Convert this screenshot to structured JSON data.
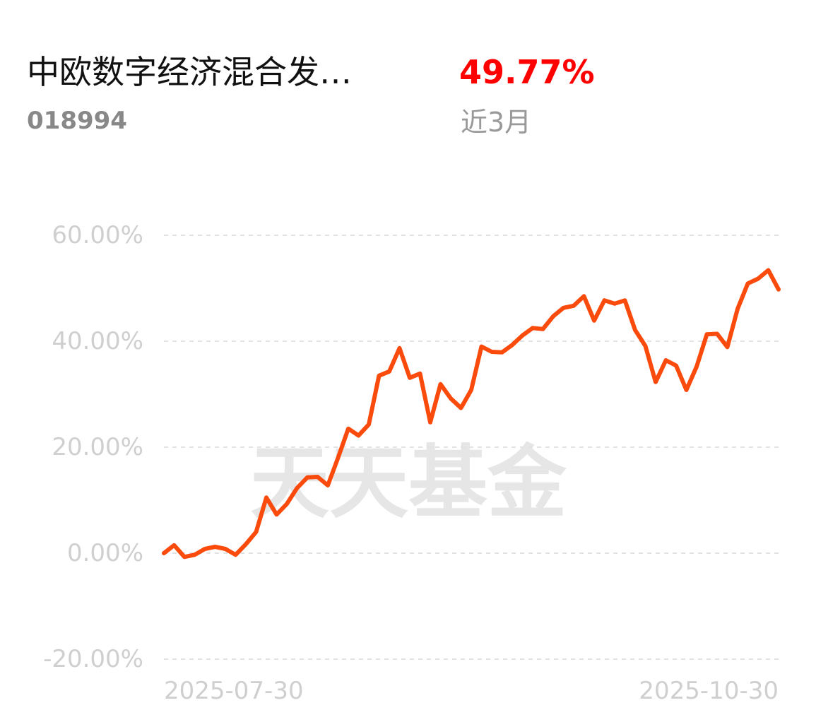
{
  "header": {
    "title": "中欧数字经济混合发…",
    "code": "018994",
    "return": "49.77%",
    "period": "近3月"
  },
  "watermark": "天天基金",
  "chart_data": {
    "type": "line",
    "categories": [
      "2025-07-30",
      null,
      null,
      null,
      null,
      null,
      null,
      null,
      null,
      null,
      null,
      null,
      null,
      null,
      null,
      null,
      null,
      null,
      null,
      null,
      null,
      null,
      null,
      null,
      null,
      null,
      null,
      null,
      null,
      null,
      null,
      null,
      null,
      null,
      null,
      null,
      null,
      null,
      null,
      null,
      null,
      null,
      null,
      null,
      null,
      null,
      null,
      null,
      null,
      null,
      null,
      null,
      null,
      null,
      null,
      null,
      null,
      null,
      null,
      null,
      "2025-10-30"
    ],
    "values": [
      0,
      1.5,
      -0.7,
      -0.3,
      0.8,
      1.2,
      0.8,
      -0.3,
      1.7,
      4.0,
      10.5,
      7.3,
      9.3,
      12.3,
      14.3,
      14.4,
      12.8,
      18.0,
      23.5,
      22.2,
      24.3,
      33.5,
      34.3,
      38.7,
      33.1,
      33.9,
      24.7,
      31.9,
      29.2,
      27.4,
      30.8,
      39.0,
      38.0,
      37.9,
      39.3,
      41.1,
      42.5,
      42.3,
      44.7,
      46.3,
      46.7,
      48.5,
      43.9,
      47.7,
      47.1,
      47.7,
      42.1,
      39.1,
      32.3,
      36.4,
      35.4,
      30.8,
      35.2,
      41.3,
      41.4,
      38.9,
      46.1,
      50.9,
      51.8,
      53.4,
      49.77
    ],
    "color": "#fa4a0c",
    "ylim": [
      -20,
      60
    ],
    "yticks": [
      {
        "value": -20,
        "label": "-20.00%"
      },
      {
        "value": 0,
        "label": "0.00%"
      },
      {
        "value": 20,
        "label": "20.00%"
      },
      {
        "value": 40,
        "label": "40.00%"
      },
      {
        "value": 60,
        "label": "60.00%"
      }
    ],
    "grid": true
  }
}
